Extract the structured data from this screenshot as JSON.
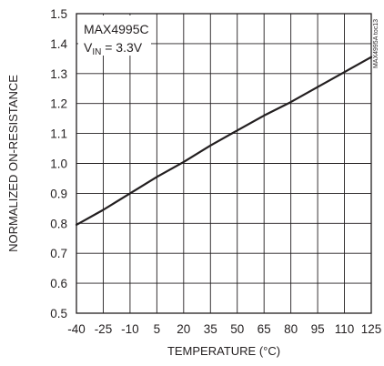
{
  "chart_data": {
    "type": "line",
    "xlabel": "TEMPERATURE (°C)",
    "ylabel": "NORMALIZED ON-RESISTANCE",
    "xlim": [
      -40,
      125
    ],
    "ylim": [
      0.5,
      1.5
    ],
    "x_ticks": [
      -40,
      -25,
      -10,
      5,
      20,
      35,
      50,
      65,
      80,
      95,
      110,
      125
    ],
    "y_ticks": [
      0.5,
      0.6,
      0.7,
      0.8,
      0.9,
      1.0,
      1.1,
      1.2,
      1.3,
      1.4,
      1.5
    ],
    "x_tick_labels": [
      "-40",
      "-25",
      "-10",
      "5",
      "20",
      "35",
      "50",
      "65",
      "80",
      "95",
      "110",
      "125"
    ],
    "y_tick_labels": [
      "0.5",
      "0.6",
      "0.7",
      "0.8",
      "0.9",
      "1.0",
      "1.1",
      "1.2",
      "1.3",
      "1.4",
      "1.5"
    ],
    "grid": true,
    "annotation": {
      "part": "MAX4995C",
      "condition_prefix": "V",
      "condition_subscript": "IN",
      "condition_suffix": " = 3.3V"
    },
    "side_label": "MAX4995A toc13",
    "series": [
      {
        "color": "#231f20",
        "x": [
          -40,
          -25,
          -10,
          5,
          20,
          35,
          50,
          65,
          80,
          95,
          110,
          125
        ],
        "y": [
          0.795,
          0.845,
          0.9,
          0.955,
          1.005,
          1.06,
          1.11,
          1.16,
          1.205,
          1.255,
          1.305,
          1.355
        ]
      }
    ]
  }
}
